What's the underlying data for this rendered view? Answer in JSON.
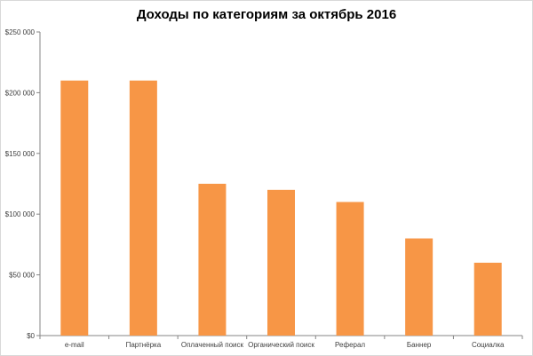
{
  "chart_data": {
    "type": "bar",
    "title": "Доходы по категориям за октябрь 2016",
    "xlabel": "",
    "ylabel": "",
    "categories": [
      "e-mail",
      "Партнёрка",
      "Оплаченный поиск",
      "Органический поиск",
      "Реферал",
      "Баннер",
      "Социалка"
    ],
    "values": [
      210000,
      210000,
      125000,
      120000,
      110000,
      80000,
      60000
    ],
    "ylim": [
      0,
      250000
    ],
    "yticks": [
      0,
      50000,
      100000,
      150000,
      200000,
      250000
    ],
    "ytick_labels": [
      "$0",
      "$50 000",
      "$100 000",
      "$150 000",
      "$200 000",
      "$250 000"
    ],
    "grid": false,
    "legend": "none",
    "bar_color": "#F79646",
    "axis_color": "#868686"
  }
}
